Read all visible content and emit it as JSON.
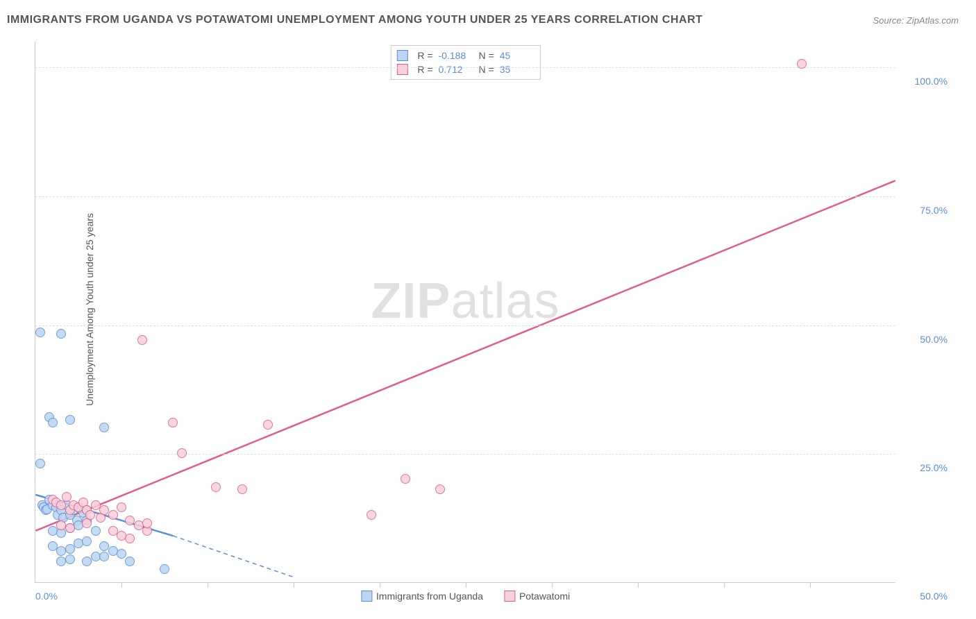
{
  "title": "IMMIGRANTS FROM UGANDA VS POTAWATOMI UNEMPLOYMENT AMONG YOUTH UNDER 25 YEARS CORRELATION CHART",
  "source_prefix": "Source: ",
  "source_name": "ZipAtlas.com",
  "ylabel": "Unemployment Among Youth under 25 years",
  "watermark_a": "ZIP",
  "watermark_b": "atlas",
  "chart": {
    "type": "scatter",
    "background_color": "#ffffff",
    "grid_color": "#dddddd",
    "axis_color": "#cccccc",
    "tick_label_color": "#5b8fd6",
    "xlim": [
      0,
      50
    ],
    "ylim": [
      0,
      105
    ],
    "xticks": [
      0,
      50
    ],
    "xtick_labels": [
      "0.0%",
      "50.0%"
    ],
    "x_minor_ticks": [
      5,
      10,
      15,
      20,
      25,
      30,
      35,
      40,
      45
    ],
    "yticks": [
      25,
      50,
      75,
      100
    ],
    "ytick_labels": [
      "25.0%",
      "50.0%",
      "75.0%",
      "100.0%"
    ],
    "marker_radius": 7,
    "marker_border_width": 1.5,
    "trend_line_width": 2.5
  },
  "series": [
    {
      "key": "uganda",
      "label": "Immigrants from Uganda",
      "fill_color": "#bcd5f0",
      "stroke_color": "#5b8fd6",
      "R_label": "R = ",
      "R_value": "-0.188",
      "N_label": "N = ",
      "N_value": "45",
      "trend": {
        "x1": 0,
        "y1": 17,
        "x2_solid": 8,
        "y2_solid": 9,
        "x2_dash": 15,
        "y2_dash": 1
      },
      "points": [
        [
          0.3,
          48.5
        ],
        [
          1.5,
          48.2
        ],
        [
          0.8,
          32
        ],
        [
          1.0,
          31
        ],
        [
          2.0,
          31.5
        ],
        [
          4.0,
          30
        ],
        [
          0.3,
          23
        ],
        [
          0.4,
          15
        ],
        [
          0.5,
          14.5
        ],
        [
          0.6,
          14
        ],
        [
          0.7,
          14.2
        ],
        [
          0.8,
          16
        ],
        [
          1.0,
          15
        ],
        [
          1.2,
          14.5
        ],
        [
          1.3,
          13
        ],
        [
          1.5,
          14
        ],
        [
          1.6,
          12.5
        ],
        [
          1.8,
          15
        ],
        [
          2.0,
          13
        ],
        [
          2.2,
          14
        ],
        [
          2.4,
          12
        ],
        [
          2.5,
          14.5
        ],
        [
          2.8,
          13.5
        ],
        [
          3.0,
          14
        ],
        [
          1.0,
          10
        ],
        [
          1.5,
          9.5
        ],
        [
          2.0,
          10.5
        ],
        [
          2.5,
          11
        ],
        [
          3.0,
          12
        ],
        [
          3.5,
          10
        ],
        [
          1.0,
          7
        ],
        [
          1.5,
          6
        ],
        [
          2.0,
          6.5
        ],
        [
          2.5,
          7.5
        ],
        [
          3.0,
          8
        ],
        [
          3.5,
          5
        ],
        [
          4.0,
          7
        ],
        [
          4.5,
          6
        ],
        [
          1.5,
          4
        ],
        [
          2.0,
          4.5
        ],
        [
          3.0,
          4
        ],
        [
          4.0,
          5
        ],
        [
          5.0,
          5.5
        ],
        [
          5.5,
          4
        ],
        [
          7.5,
          2.5
        ]
      ]
    },
    {
      "key": "potawatomi",
      "label": "Potawatomi",
      "fill_color": "#f6d0da",
      "stroke_color": "#e15d8b",
      "R_label": "R = ",
      "R_value": "0.712",
      "N_label": "N = ",
      "N_value": "35",
      "trend": {
        "x1": 0,
        "y1": 10,
        "x2_solid": 50,
        "y2_solid": 78,
        "x2_dash": 50,
        "y2_dash": 78
      },
      "points": [
        [
          44.5,
          100.5
        ],
        [
          6.2,
          47
        ],
        [
          8.0,
          31
        ],
        [
          13.5,
          30.5
        ],
        [
          8.5,
          25
        ],
        [
          10.5,
          18.5
        ],
        [
          12.0,
          18
        ],
        [
          21.5,
          20
        ],
        [
          23.5,
          18
        ],
        [
          19.5,
          13
        ],
        [
          1.0,
          16
        ],
        [
          1.2,
          15.5
        ],
        [
          1.5,
          15
        ],
        [
          1.8,
          16.5
        ],
        [
          2.0,
          14
        ],
        [
          2.2,
          15
        ],
        [
          2.5,
          14.5
        ],
        [
          2.8,
          15.5
        ],
        [
          3.0,
          14
        ],
        [
          3.2,
          13
        ],
        [
          3.5,
          15
        ],
        [
          3.8,
          12.5
        ],
        [
          4.0,
          14
        ],
        [
          4.5,
          13
        ],
        [
          5.0,
          14.5
        ],
        [
          5.5,
          12
        ],
        [
          4.5,
          10
        ],
        [
          5.0,
          9
        ],
        [
          6.0,
          11
        ],
        [
          6.5,
          10
        ],
        [
          1.5,
          11
        ],
        [
          2.0,
          10.5
        ],
        [
          3.0,
          11.5
        ],
        [
          5.5,
          8.5
        ],
        [
          6.5,
          11.5
        ]
      ]
    }
  ]
}
